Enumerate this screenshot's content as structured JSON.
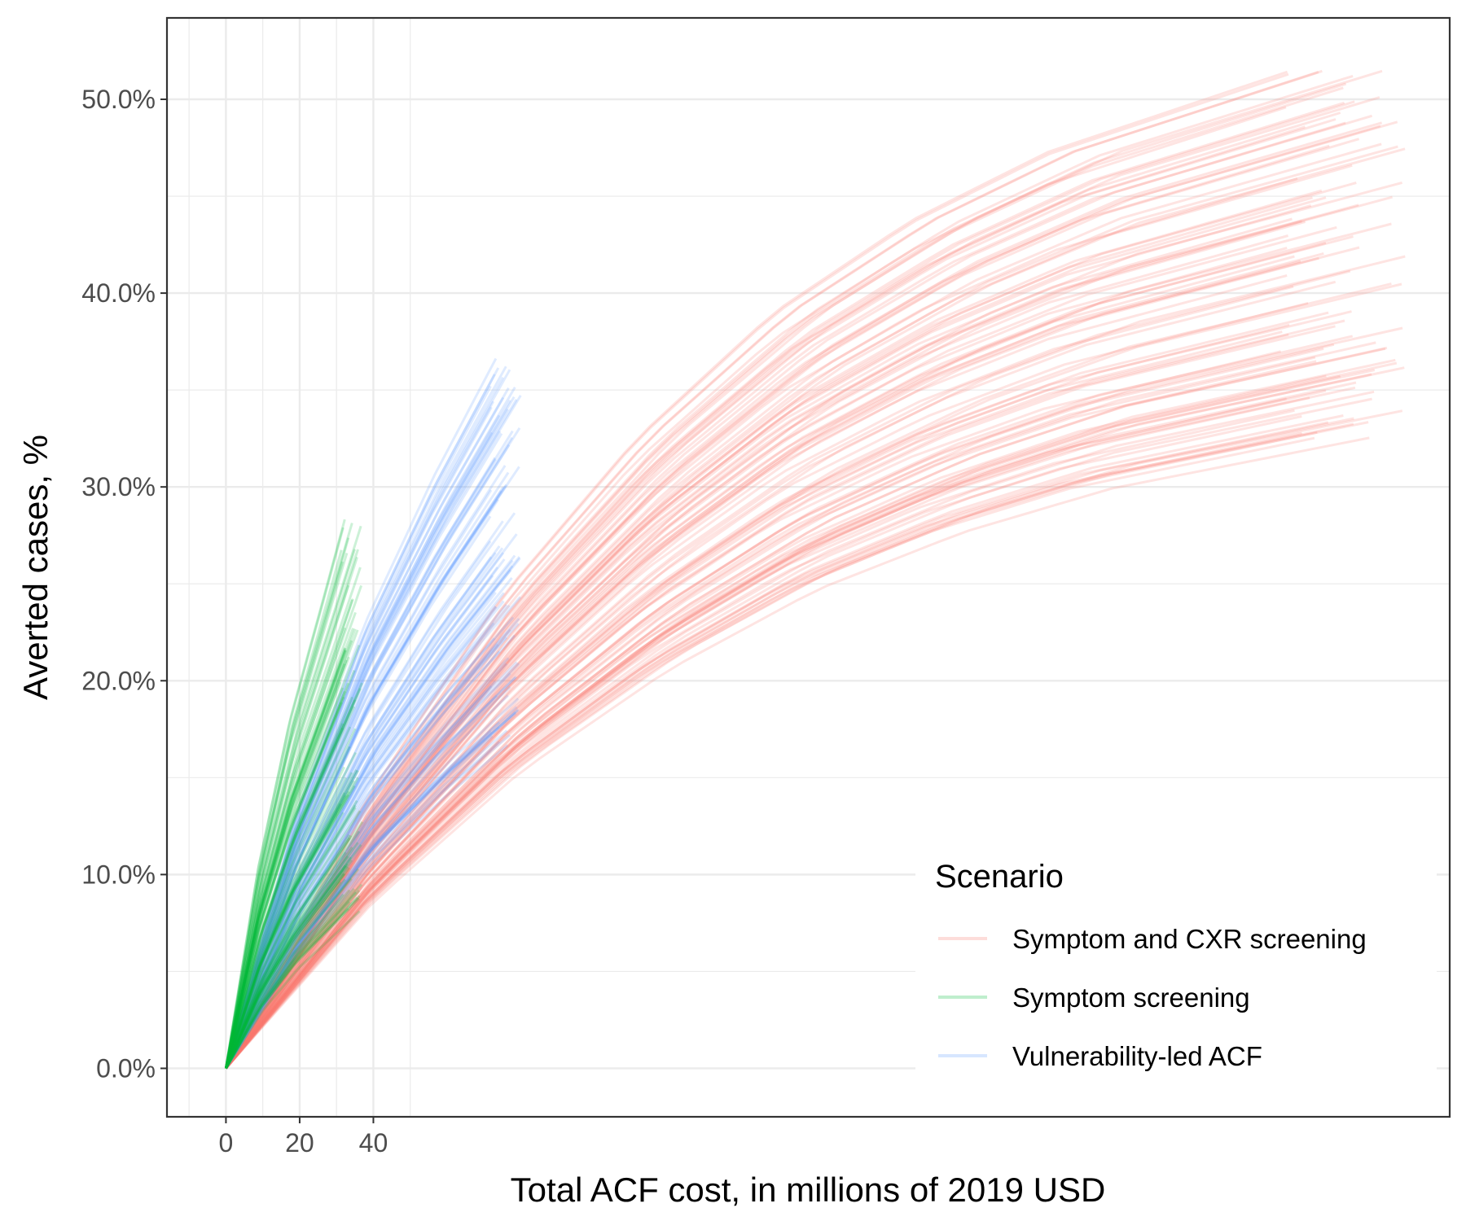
{
  "chart_data": {
    "type": "line",
    "title": "",
    "xlabel": "Total ACF cost, in millions of 2019 USD",
    "ylabel": "Averted cases, %",
    "x_ticks": [
      0,
      20,
      40
    ],
    "x_tick_labels": [
      "0",
      "20",
      "40"
    ],
    "y_ticks": [
      0,
      10,
      20,
      30,
      40,
      50
    ],
    "y_tick_labels": [
      "0.0%",
      "10.0%",
      "20.0%",
      "30.0%",
      "40.0%",
      "50.0%"
    ],
    "xlim": [
      -16,
      332
    ],
    "ylim": [
      -2.5,
      54.2
    ],
    "grid": true,
    "legend": {
      "title": "Scenario",
      "position": "bottom-right",
      "entries": [
        {
          "label": "Symptom and CXR screening",
          "color": "#F8766D"
        },
        {
          "label": "Symptom screening",
          "color": "#00BA38"
        },
        {
          "label": "Vulnerability-led ACF",
          "color": "#619CFF"
        }
      ]
    },
    "series": [
      {
        "name": "Symptom and CXR screening",
        "color": "#F8766D",
        "opacity": 0.2,
        "n_runs": 100,
        "x_end_range": [
          280,
          320
        ],
        "y_end_range": [
          32.5,
          51.5
        ],
        "y_end_median": 43.0,
        "representative": [
          {
            "x": 0,
            "y": 0
          },
          {
            "x": 40,
            "y": 11.5
          },
          {
            "x": 80,
            "y": 20.5
          },
          {
            "x": 120,
            "y": 27.5
          },
          {
            "x": 160,
            "y": 33.0
          },
          {
            "x": 200,
            "y": 37.0
          },
          {
            "x": 240,
            "y": 40.0
          },
          {
            "x": 280,
            "y": 42.0
          },
          {
            "x": 310,
            "y": 43.5
          }
        ]
      },
      {
        "name": "Symptom screening",
        "color": "#00BA38",
        "opacity": 0.2,
        "n_runs": 100,
        "x_end_range": [
          30,
          37
        ],
        "y_end_range": [
          8.0,
          28.5
        ],
        "y_end_median": 16.5,
        "representative": [
          {
            "x": 0,
            "y": 0
          },
          {
            "x": 10,
            "y": 6.0
          },
          {
            "x": 20,
            "y": 10.5
          },
          {
            "x": 30,
            "y": 14.0
          },
          {
            "x": 37,
            "y": 16.5
          }
        ]
      },
      {
        "name": "Vulnerability-led ACF",
        "color": "#619CFF",
        "opacity": 0.2,
        "n_runs": 100,
        "x_end_range": [
          70,
          80
        ],
        "y_end_range": [
          16.5,
          36.7
        ],
        "y_end_median": 24.0,
        "representative": [
          {
            "x": 0,
            "y": 0
          },
          {
            "x": 20,
            "y": 8.5
          },
          {
            "x": 40,
            "y": 15.0
          },
          {
            "x": 60,
            "y": 20.0
          },
          {
            "x": 78,
            "y": 24.0
          }
        ]
      }
    ]
  }
}
